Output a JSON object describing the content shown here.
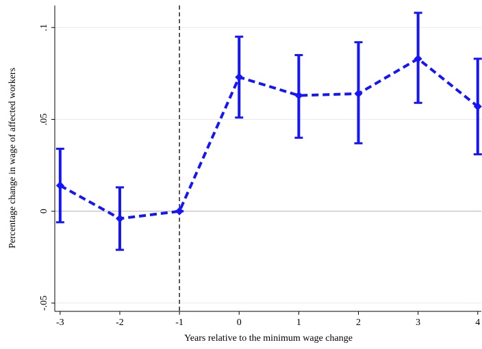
{
  "chart_data": {
    "type": "line",
    "xlabel": "Years relative to the minimum wage change",
    "ylabel": "Percentage change in wage of affected workers",
    "x": [
      -3,
      -2,
      -1,
      0,
      1,
      2,
      3,
      4
    ],
    "values": [
      0.014,
      -0.004,
      0,
      0.073,
      0.063,
      0.064,
      0.083,
      0.057
    ],
    "ci_low": [
      -0.006,
      -0.021,
      0,
      0.051,
      0.04,
      0.037,
      0.059,
      0.031
    ],
    "ci_high": [
      0.034,
      0.013,
      0,
      0.095,
      0.085,
      0.092,
      0.108,
      0.083
    ],
    "color": "#1414ff",
    "xlim": [
      -3.09,
      4.06
    ],
    "ylim": [
      -0.0545,
      0.112
    ],
    "xticks": [
      -3,
      -2,
      -1,
      0,
      1,
      2,
      3,
      4
    ],
    "yticks": [
      {
        "value": -0.05,
        "label": "-.05"
      },
      {
        "value": 0,
        "label": "0"
      },
      {
        "value": 0.05,
        "label": ".05"
      },
      {
        "value": 0.1,
        "label": ".1"
      }
    ],
    "xline": -1,
    "grid": true
  }
}
